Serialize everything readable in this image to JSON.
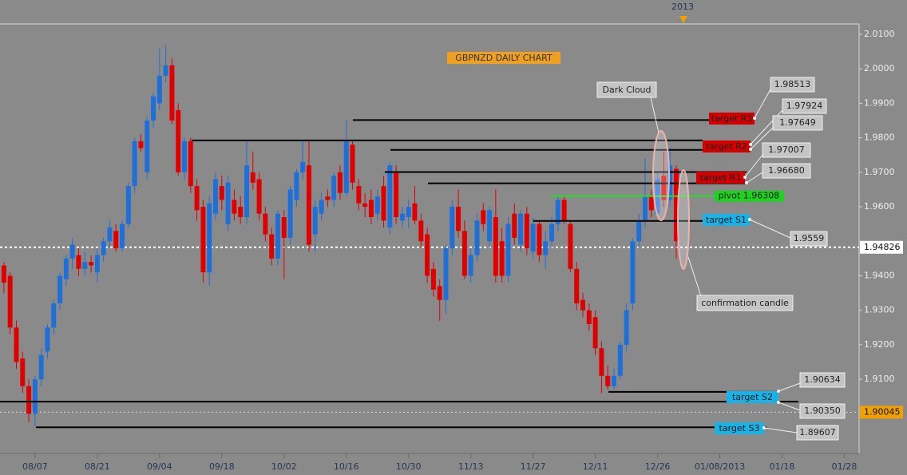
{
  "chart_data": {
    "type": "candlestick",
    "title": "GBPNZD DAILY CHART",
    "year_marker": "2013",
    "categories": [
      null,
      null,
      null,
      null,
      null,
      "08/07",
      null,
      null,
      null,
      null,
      null,
      null,
      null,
      null,
      null,
      "08/21",
      null,
      null,
      null,
      null,
      null,
      null,
      null,
      null,
      null,
      "09/04",
      null,
      null,
      null,
      null,
      null,
      null,
      null,
      null,
      null,
      "09/18",
      null,
      null,
      null,
      null,
      null,
      null,
      null,
      null,
      null,
      "10/02",
      null,
      null,
      null,
      null,
      null,
      null,
      null,
      null,
      null,
      "10/16",
      null,
      null,
      null,
      null,
      null,
      null,
      null,
      null,
      null,
      "10/30",
      null,
      null,
      null,
      null,
      null,
      null,
      null,
      null,
      null,
      "11/13",
      null,
      null,
      null,
      null,
      null,
      null,
      null,
      null,
      null,
      "11/27",
      null,
      null,
      null,
      null,
      null,
      null,
      null,
      null,
      null,
      "12/11",
      null,
      null,
      null,
      null,
      null,
      null,
      null,
      null,
      null,
      "12/26",
      null,
      null,
      null,
      null,
      null,
      null,
      null,
      null,
      null,
      "01/08/2013",
      null,
      null,
      null,
      null,
      null,
      null,
      null,
      null,
      null,
      "01/18",
      null,
      null,
      null,
      null,
      null,
      null,
      null,
      null,
      null,
      "01/28",
      null,
      null
    ],
    "ohlc": [
      [
        1.943,
        1.944,
        1.935,
        1.938
      ],
      [
        1.94,
        1.941,
        1.923,
        1.925
      ],
      [
        1.925,
        1.927,
        1.913,
        1.915
      ],
      [
        1.916,
        1.918,
        1.906,
        1.908
      ],
      [
        1.908,
        1.91,
        1.8975,
        1.9
      ],
      [
        1.9,
        1.911,
        1.8965,
        1.91
      ],
      [
        1.91,
        1.919,
        1.908,
        1.917
      ],
      [
        1.918,
        1.926,
        1.916,
        1.925
      ],
      [
        1.925,
        1.933,
        1.923,
        1.932
      ],
      [
        1.932,
        1.941,
        1.93,
        1.94
      ],
      [
        1.939,
        1.946,
        1.937,
        1.945
      ],
      [
        1.945,
        1.951,
        1.942,
        1.949
      ],
      [
        1.946,
        1.948,
        1.94,
        1.942
      ],
      [
        1.942,
        1.947,
        1.94,
        1.944
      ],
      [
        1.944,
        1.946,
        1.941,
        1.943
      ],
      [
        1.941,
        1.948,
        1.938,
        1.946
      ],
      [
        1.946,
        1.951,
        1.944,
        1.95
      ],
      [
        1.95,
        1.956,
        1.948,
        1.954
      ],
      [
        1.953,
        1.955,
        1.947,
        1.948
      ],
      [
        1.948,
        1.956,
        1.947,
        1.955
      ],
      [
        1.955,
        1.967,
        1.954,
        1.966
      ],
      [
        1.966,
        1.98,
        1.964,
        1.979
      ],
      [
        1.979,
        1.981,
        1.976,
        1.977
      ],
      [
        1.97,
        1.986,
        1.968,
        1.985
      ],
      [
        1.985,
        1.993,
        1.983,
        1.992
      ],
      [
        1.99,
        2.006,
        1.988,
        1.998
      ],
      [
        1.998,
        2.007,
        1.996,
        2.001
      ],
      [
        2.001,
        2.003,
        1.984,
        1.985
      ],
      [
        1.988,
        1.99,
        1.969,
        1.97
      ],
      [
        1.97,
        1.98,
        1.968,
        1.979
      ],
      [
        1.979,
        1.98,
        1.964,
        1.966
      ],
      [
        1.966,
        1.968,
        1.956,
        1.959
      ],
      [
        1.96,
        1.962,
        1.938,
        1.941
      ],
      [
        1.941,
        1.963,
        1.937,
        1.961
      ],
      [
        1.958,
        1.97,
        1.956,
        1.968
      ],
      [
        1.966,
        1.969,
        1.959,
        1.962
      ],
      [
        1.955,
        1.969,
        1.953,
        1.967
      ],
      [
        1.962,
        1.965,
        1.956,
        1.958
      ],
      [
        1.96,
        1.963,
        1.955,
        1.957
      ],
      [
        1.957,
        1.979,
        1.955,
        1.972
      ],
      [
        1.97,
        1.976,
        1.965,
        1.967
      ],
      [
        1.968,
        1.97,
        1.956,
        1.958
      ],
      [
        1.958,
        1.96,
        1.95,
        1.952
      ],
      [
        1.952,
        1.954,
        1.943,
        1.945
      ],
      [
        1.945,
        1.959,
        1.943,
        1.958
      ],
      [
        1.957,
        1.959,
        1.939,
        1.951
      ],
      [
        1.951,
        1.966,
        1.949,
        1.965
      ],
      [
        1.962,
        1.971,
        1.96,
        1.97
      ],
      [
        1.97,
        1.979,
        1.968,
        1.973
      ],
      [
        1.972,
        1.979,
        1.947,
        1.949
      ],
      [
        1.952,
        1.962,
        1.947,
        1.96
      ],
      [
        1.958,
        1.964,
        1.956,
        1.962
      ],
      [
        1.963,
        1.965,
        1.96,
        1.962
      ],
      [
        1.962,
        1.97,
        1.96,
        1.969
      ],
      [
        1.97,
        1.972,
        1.962,
        1.964
      ],
      [
        1.964,
        1.985,
        1.963,
        1.979
      ],
      [
        1.978,
        1.979,
        1.965,
        1.967
      ],
      [
        1.966,
        1.968,
        1.959,
        1.961
      ],
      [
        1.961,
        1.964,
        1.957,
        1.96
      ],
      [
        1.962,
        1.965,
        1.955,
        1.957
      ],
      [
        1.958,
        1.965,
        1.956,
        1.963
      ],
      [
        1.966,
        1.969,
        1.954,
        1.956
      ],
      [
        1.954,
        1.973,
        1.952,
        1.972
      ],
      [
        1.97,
        1.972,
        1.955,
        1.957
      ],
      [
        1.956,
        1.96,
        1.954,
        1.958
      ],
      [
        1.957,
        1.962,
        1.954,
        1.96
      ],
      [
        1.961,
        1.966,
        1.955,
        1.956
      ],
      [
        1.956,
        1.958,
        1.948,
        1.95
      ],
      [
        1.952,
        1.954,
        1.938,
        1.94
      ],
      [
        1.942,
        1.944,
        1.934,
        1.936
      ],
      [
        1.937,
        1.939,
        1.927,
        1.933
      ],
      [
        1.933,
        1.949,
        1.929,
        1.948
      ],
      [
        1.948,
        1.962,
        1.946,
        1.96
      ],
      [
        1.96,
        1.965,
        1.951,
        1.953
      ],
      [
        1.953,
        1.956,
        1.939,
        1.94
      ],
      [
        1.94,
        1.948,
        1.938,
        1.946
      ],
      [
        1.946,
        1.958,
        1.944,
        1.956
      ],
      [
        1.959,
        1.961,
        1.953,
        1.955
      ],
      [
        1.95,
        1.96,
        1.948,
        1.959
      ],
      [
        1.957,
        1.965,
        1.938,
        1.94
      ],
      [
        1.95,
        1.954,
        1.938,
        1.94
      ],
      [
        1.94,
        1.957,
        1.938,
        1.955
      ],
      [
        1.958,
        1.961,
        1.949,
        1.951
      ],
      [
        1.949,
        1.959,
        1.947,
        1.958
      ],
      [
        1.958,
        1.96,
        1.946,
        1.948
      ],
      [
        1.947,
        1.957,
        1.945,
        1.955
      ],
      [
        1.955,
        1.956,
        1.944,
        1.946
      ],
      [
        1.946,
        1.953,
        1.942,
        1.95
      ],
      [
        1.95,
        1.957,
        1.948,
        1.955
      ],
      [
        1.955,
        1.963,
        1.953,
        1.962
      ],
      [
        1.962,
        1.963,
        1.955,
        1.956
      ],
      [
        1.955,
        1.956,
        1.941,
        1.942
      ],
      [
        1.942,
        1.944,
        1.93,
        1.932
      ],
      [
        1.933,
        1.935,
        1.928,
        1.93
      ],
      [
        1.93,
        1.932,
        1.924,
        1.926
      ],
      [
        1.928,
        1.93,
        1.917,
        1.919
      ],
      [
        1.919,
        1.921,
        1.906,
        1.911
      ],
      [
        1.911,
        1.914,
        1.907,
        1.908
      ],
      [
        1.908,
        1.913,
        1.907,
        1.911
      ],
      [
        1.911,
        1.921,
        1.91,
        1.92
      ],
      [
        1.92,
        1.932,
        1.918,
        1.93
      ],
      [
        1.932,
        1.951,
        1.93,
        1.95
      ],
      [
        1.95,
        1.958,
        1.948,
        1.956
      ],
      [
        1.956,
        1.974,
        1.954,
        1.963
      ],
      [
        1.963,
        1.965,
        1.957,
        1.959
      ],
      [
        1.958,
        1.97,
        1.957,
        1.968
      ],
      [
        1.969,
        1.976,
        1.96,
        1.962
      ],
      [
        1.962,
        1.977,
        1.96,
        1.972
      ],
      [
        1.971,
        1.972,
        1.945,
        1.95
      ],
      null,
      null,
      null,
      null,
      null,
      null,
      null,
      null,
      null,
      null,
      null,
      null,
      null,
      null,
      null,
      null,
      null,
      null,
      null,
      null,
      null,
      null,
      null,
      null,
      null,
      null,
      null,
      null,
      null
    ],
    "up_color": "#1f6fd8",
    "down_color": "#e00000",
    "ylim": [
      1.8885,
      2.013
    ],
    "yticks": [
      {
        "value": 2.01,
        "label": "2.0100"
      },
      {
        "value": 2.0,
        "label": "2.0000"
      },
      {
        "value": 1.99,
        "label": "1.9900"
      },
      {
        "value": 1.98,
        "label": "1.9800"
      },
      {
        "value": 1.97,
        "label": "1.9700"
      },
      {
        "value": 1.96,
        "label": "1.9600"
      },
      {
        "value": 1.94,
        "label": "1.9400"
      },
      {
        "value": 1.93,
        "label": "1.9300"
      },
      {
        "value": 1.92,
        "label": "1.9200"
      },
      {
        "value": 1.91,
        "label": "1.9100"
      }
    ],
    "levels": [
      {
        "price": 1.98513,
        "tag": "target R3"
      },
      {
        "price": 1.97924,
        "tag": "target R2"
      },
      {
        "price": 1.97649
      },
      {
        "price": 1.97007,
        "tag": "target R1"
      },
      {
        "price": {
          "value": 1.9668,
          "label": "1.96680"
        }
      },
      {
        "price": {
          "value": 1.96308,
          "label": "pivot 1.96308"
        }
      },
      {
        "price": 1.9559,
        "tag": "target S1"
      },
      {
        "price": 1.90634,
        "tag": "target S2"
      },
      {
        "price": {
          "value": 1.9035,
          "label": "1.90350"
        }
      },
      {
        "price": 1.89607,
        "tag": "target S3"
      }
    ],
    "price_lines": [
      1.94826,
      1.90045
    ],
    "annotations": [
      "Dark Cloud",
      "confirmation candle"
    ]
  }
}
